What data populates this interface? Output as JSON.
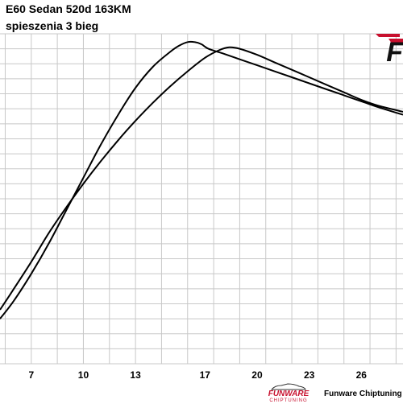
{
  "header": {
    "title_line1": "E60 Sedan 520d 163KM",
    "title_line2": "spieszenia 3 bieg"
  },
  "logo": {
    "text": "F",
    "accent_color": "#c8102e"
  },
  "footer": {
    "brand_name": "FUNWARE",
    "brand_sub": "CHIPTUNING",
    "credit": "Funware Chiptuning Łód"
  },
  "colors": {
    "grid": "#c8c8c8",
    "line": "#000000",
    "background": "#ffffff"
  },
  "chart_data": {
    "type": "line",
    "title": "E60 Sedan 520d 163KM",
    "subtitle": "spieszenia 3 bieg",
    "xlabel": "",
    "ylabel": "",
    "x_ticks": [
      7,
      10,
      13,
      17,
      20,
      23,
      26
    ],
    "xlim": [
      5.2,
      28.4
    ],
    "ylim": [
      0,
      22
    ],
    "grid": true,
    "legend": "none",
    "series": [
      {
        "x": [
          5.2,
          6,
          7,
          8,
          9,
          10,
          11,
          12,
          13,
          14,
          15,
          15.5,
          16,
          16.4,
          16.8,
          17.2,
          18,
          19,
          20,
          21,
          22,
          23,
          24,
          25,
          26,
          27,
          28.4
        ],
        "y": [
          3.0,
          4.2,
          6.0,
          8.0,
          10.2,
          12.4,
          14.6,
          16.6,
          18.4,
          19.8,
          20.8,
          21.2,
          21.45,
          21.45,
          21.3,
          21.0,
          20.7,
          20.3,
          19.9,
          19.5,
          19.1,
          18.7,
          18.3,
          17.9,
          17.5,
          17.1,
          16.6
        ]
      },
      {
        "x": [
          5.2,
          6,
          7,
          8,
          9,
          10,
          11,
          12,
          13,
          14,
          15,
          16,
          17,
          17.8,
          18.4,
          19,
          20,
          21,
          22,
          23,
          24,
          25,
          26,
          27,
          28.4
        ],
        "y": [
          3.6,
          5.0,
          6.8,
          8.7,
          10.4,
          12.0,
          13.5,
          14.9,
          16.2,
          17.4,
          18.5,
          19.5,
          20.4,
          20.9,
          21.1,
          21.0,
          20.6,
          20.1,
          19.6,
          19.1,
          18.6,
          18.1,
          17.6,
          17.2,
          16.8
        ]
      }
    ]
  }
}
